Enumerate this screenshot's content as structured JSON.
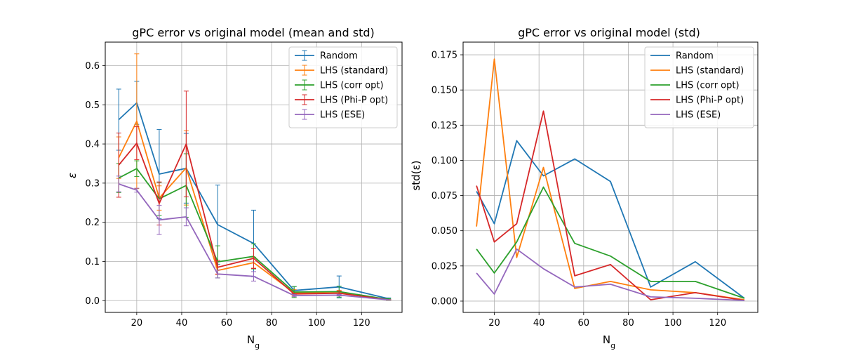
{
  "chart_data": [
    {
      "type": "line",
      "title": "gPC error vs original model (mean and std)",
      "xlabel": "N_g",
      "ylabel": "ε",
      "xlim": [
        6,
        138
      ],
      "ylim": [
        -0.03,
        0.66
      ],
      "xticks": [
        20,
        40,
        60,
        80,
        100,
        120
      ],
      "yticks": [
        0.0,
        0.1,
        0.2,
        0.3,
        0.4,
        0.5,
        0.6
      ],
      "ytick_labels": [
        "0.0",
        "0.1",
        "0.2",
        "0.3",
        "0.4",
        "0.5",
        "0.6"
      ],
      "grid": true,
      "legend_position": "top-right",
      "x": [
        12,
        20,
        30,
        42,
        56,
        72,
        90,
        110,
        132
      ],
      "series": [
        {
          "name": "Random",
          "color": "#1f77b4",
          "values": [
            0.462,
            0.505,
            0.323,
            0.338,
            0.194,
            0.146,
            0.026,
            0.035,
            0.005
          ],
          "errors": [
            0.078,
            0.055,
            0.114,
            0.089,
            0.101,
            0.085,
            0.01,
            0.028,
            0.002
          ]
        },
        {
          "name": "LHS (standard)",
          "color": "#ff7f0e",
          "values": [
            0.365,
            0.458,
            0.262,
            0.339,
            0.077,
            0.097,
            0.02,
            0.02,
            0.002
          ],
          "errors": [
            0.053,
            0.172,
            0.031,
            0.095,
            0.009,
            0.014,
            0.008,
            0.006,
            0.001
          ]
        },
        {
          "name": "LHS (corr opt)",
          "color": "#2ca02c",
          "values": [
            0.313,
            0.337,
            0.26,
            0.294,
            0.099,
            0.113,
            0.022,
            0.023,
            0.003
          ],
          "errors": [
            0.037,
            0.02,
            0.042,
            0.081,
            0.041,
            0.032,
            0.014,
            0.014,
            0.002
          ]
        },
        {
          "name": "LHS (Phi-P opt)",
          "color": "#d62728",
          "values": [
            0.346,
            0.402,
            0.248,
            0.4,
            0.085,
            0.108,
            0.017,
            0.019,
            0.002
          ],
          "errors": [
            0.082,
            0.042,
            0.055,
            0.135,
            0.018,
            0.026,
            0.001,
            0.006,
            0.0005
          ]
        },
        {
          "name": "LHS (ESE)",
          "color": "#9467bd",
          "values": [
            0.298,
            0.282,
            0.206,
            0.214,
            0.068,
            0.062,
            0.013,
            0.014,
            0.002
          ],
          "errors": [
            0.02,
            0.005,
            0.037,
            0.023,
            0.01,
            0.012,
            0.003,
            0.002,
            0.0005
          ]
        }
      ]
    },
    {
      "type": "line",
      "title": "gPC error vs original model (std)",
      "xlabel": "N_g",
      "ylabel": "std(ε)",
      "xlim": [
        6,
        138
      ],
      "ylim": [
        -0.008,
        0.184
      ],
      "xticks": [
        20,
        40,
        60,
        80,
        100,
        120
      ],
      "yticks": [
        0.0,
        0.025,
        0.05,
        0.075,
        0.1,
        0.125,
        0.15,
        0.175
      ],
      "ytick_labels": [
        "0.000",
        "0.025",
        "0.050",
        "0.075",
        "0.100",
        "0.125",
        "0.150",
        "0.175"
      ],
      "grid": true,
      "legend_position": "top-right",
      "x": [
        12,
        20,
        30,
        42,
        56,
        72,
        90,
        110,
        132
      ],
      "series": [
        {
          "name": "Random",
          "color": "#1f77b4",
          "values": [
            0.078,
            0.055,
            0.114,
            0.089,
            0.101,
            0.085,
            0.01,
            0.028,
            0.002
          ]
        },
        {
          "name": "LHS (standard)",
          "color": "#ff7f0e",
          "values": [
            0.053,
            0.172,
            0.031,
            0.095,
            0.009,
            0.014,
            0.008,
            0.006,
            0.001
          ]
        },
        {
          "name": "LHS (corr opt)",
          "color": "#2ca02c",
          "values": [
            0.037,
            0.02,
            0.042,
            0.081,
            0.041,
            0.032,
            0.014,
            0.014,
            0.002
          ]
        },
        {
          "name": "LHS (Phi-P opt)",
          "color": "#d62728",
          "values": [
            0.082,
            0.042,
            0.055,
            0.135,
            0.018,
            0.026,
            0.001,
            0.006,
            0.0005
          ]
        },
        {
          "name": "LHS (ESE)",
          "color": "#9467bd",
          "values": [
            0.02,
            0.005,
            0.037,
            0.023,
            0.01,
            0.012,
            0.003,
            0.002,
            0.0005
          ]
        }
      ]
    }
  ]
}
